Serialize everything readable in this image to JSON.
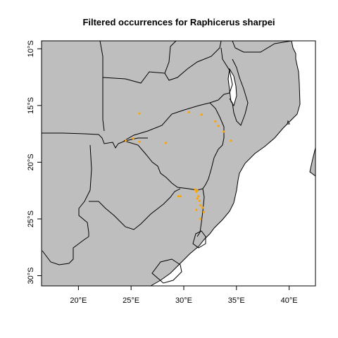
{
  "title": "Filtered occurrences for Raphicerus sharpei",
  "colors": {
    "land": "#bebebe",
    "sea": "#ffffff",
    "border": "#000000",
    "points": "#ffa500"
  },
  "axes": {
    "x_range": [
      16.5,
      42.5
    ],
    "y_range": [
      -30.9,
      -9.3
    ],
    "x_ticks": [
      {
        "value": 20,
        "label": "20°E"
      },
      {
        "value": 25,
        "label": "25°E"
      },
      {
        "value": 30,
        "label": "30°E"
      },
      {
        "value": 35,
        "label": "35°E"
      },
      {
        "value": 40,
        "label": "40°E"
      }
    ],
    "y_ticks": [
      {
        "value": -10,
        "label": "10°S"
      },
      {
        "value": -15,
        "label": "15°S"
      },
      {
        "value": -20,
        "label": "20°S"
      },
      {
        "value": -25,
        "label": "25°S"
      },
      {
        "value": -30,
        "label": "30°S"
      }
    ]
  },
  "occurrences": [
    {
      "lon": 25.8,
      "lat": -15.7
    },
    {
      "lon": 30.5,
      "lat": -15.6
    },
    {
      "lon": 31.7,
      "lat": -15.8
    },
    {
      "lon": 33.0,
      "lat": -16.4
    },
    {
      "lon": 33.3,
      "lat": -16.8
    },
    {
      "lon": 33.8,
      "lat": -17.3
    },
    {
      "lon": 34.5,
      "lat": -18.1
    },
    {
      "lon": 24.5,
      "lat": -18.1
    },
    {
      "lon": 25.2,
      "lat": -17.9
    },
    {
      "lon": 25.8,
      "lat": -18.2
    },
    {
      "lon": 28.3,
      "lat": -18.3
    },
    {
      "lon": 29.5,
      "lat": -23.0
    },
    {
      "lon": 29.7,
      "lat": -23.0
    },
    {
      "lon": 31.1,
      "lat": -22.4
    },
    {
      "lon": 31.2,
      "lat": -22.6
    },
    {
      "lon": 31.3,
      "lat": -22.5
    },
    {
      "lon": 31.4,
      "lat": -23.0
    },
    {
      "lon": 31.5,
      "lat": -23.4
    },
    {
      "lon": 31.6,
      "lat": -23.8
    },
    {
      "lon": 31.8,
      "lat": -24.0
    },
    {
      "lon": 31.9,
      "lat": -24.4
    },
    {
      "lon": 31.2,
      "lat": -24.2
    },
    {
      "lon": 31.6,
      "lat": -25.0
    },
    {
      "lon": 31.3,
      "lat": -23.2
    }
  ]
}
